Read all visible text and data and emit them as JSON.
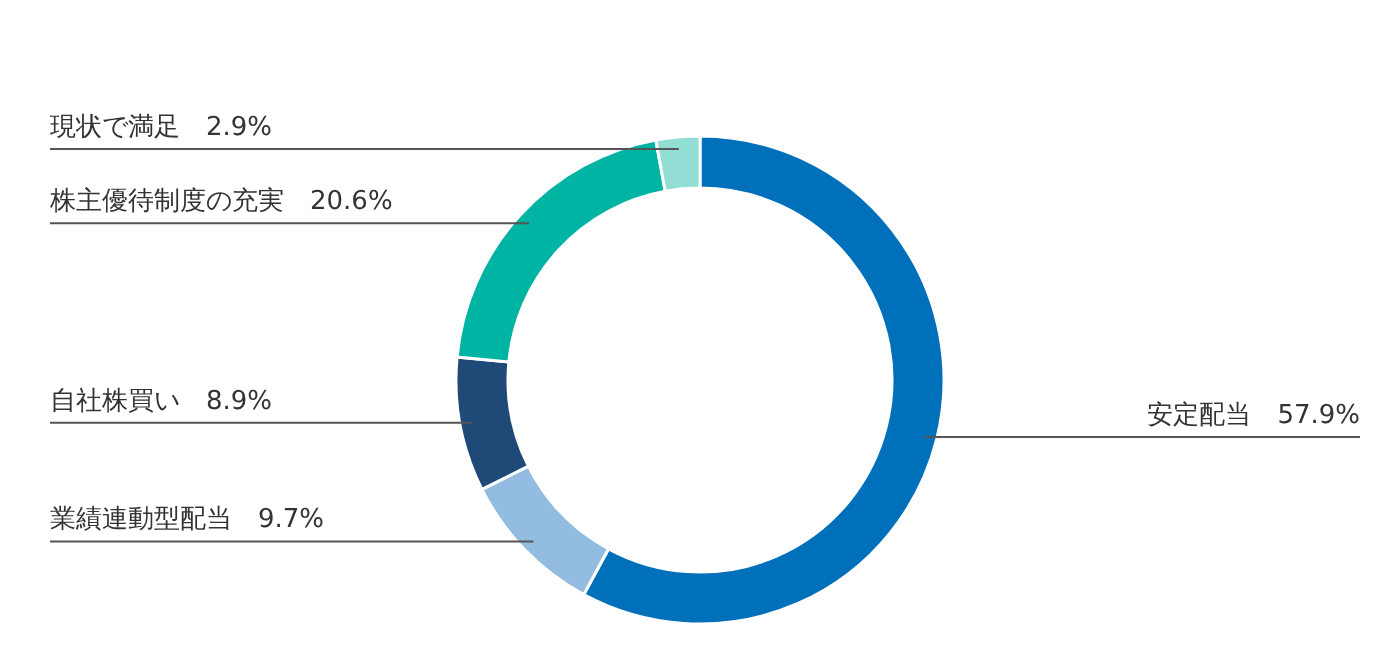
{
  "chart_data": {
    "type": "donut",
    "categories": [
      "安定配当",
      "業績連動型配当",
      "自社株買い",
      "株主優待制度の充実",
      "現状で満足"
    ],
    "values": [
      57.9,
      9.7,
      8.9,
      20.6,
      2.9
    ],
    "colors": [
      "#0070bb",
      "#92bde0",
      "#1f4a78",
      "#00b4a4",
      "#93ded4"
    ],
    "value_labels": [
      "57.9%",
      "9.7%",
      "8.9%",
      "20.6%",
      "2.9%"
    ]
  }
}
